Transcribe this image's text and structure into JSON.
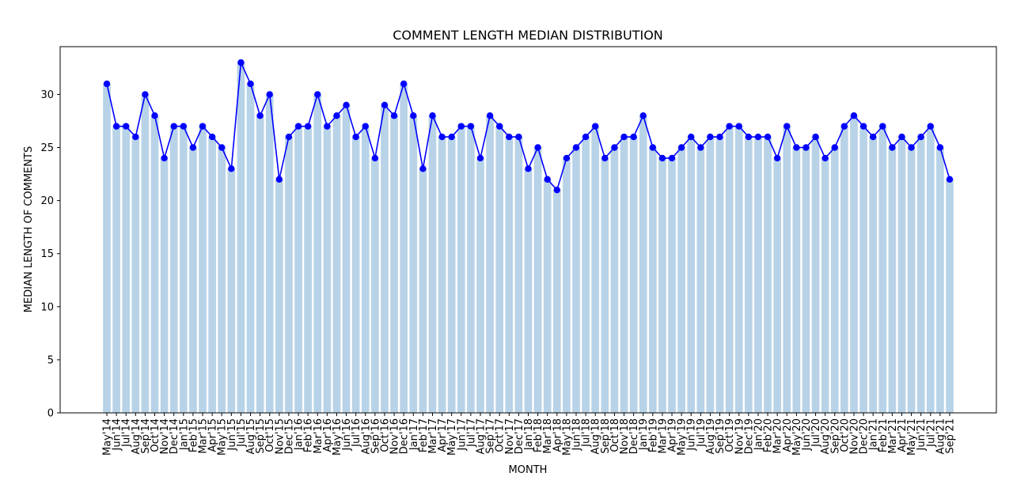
{
  "chart_data": {
    "type": "bar",
    "title": "COMMENT LENGTH MEDIAN DISTRIBUTION",
    "xlabel": "MONTH",
    "ylabel": "MEDIAN LENGTH OF COMMENTS",
    "ylim": [
      0,
      34.5
    ],
    "yticks": [
      0,
      5,
      10,
      15,
      20,
      25,
      30
    ],
    "grid": false,
    "bar_color": "#b8d3e8",
    "line_color": "#0000ff",
    "categories": [
      "May'14",
      "Jun'14",
      "Jul'14",
      "Aug'14",
      "Sep'14",
      "Oct'14",
      "Nov'14",
      "Dec'14",
      "Jan'15",
      "Feb'15",
      "Mar'15",
      "Apr'15",
      "May'15",
      "Jun'15",
      "Jul'15",
      "Aug'15",
      "Sep'15",
      "Oct'15",
      "Nov'15",
      "Dec'15",
      "Jan'16",
      "Feb'16",
      "Mar'16",
      "Apr'16",
      "May'16",
      "Jun'16",
      "Jul'16",
      "Aug'16",
      "Sep'16",
      "Oct'16",
      "Nov'16",
      "Dec'16",
      "Jan'17",
      "Feb'17",
      "Mar'17",
      "Apr'17",
      "May'17",
      "Jun'17",
      "Jul'17",
      "Aug'17",
      "Sep'17",
      "Oct'17",
      "Nov'17",
      "Dec'17",
      "Jan'18",
      "Feb'18",
      "Mar'18",
      "Apr'18",
      "May'18",
      "Jun'18",
      "Jul'18",
      "Aug'18",
      "Sep'18",
      "Oct'18",
      "Nov'18",
      "Dec'18",
      "Jan'19",
      "Feb'19",
      "Mar'19",
      "Apr'19",
      "May'19",
      "Jun'19",
      "Jul'19",
      "Aug'19",
      "Sep'19",
      "Oct'19",
      "Nov'19",
      "Dec'19",
      "Jan'20",
      "Feb'20",
      "Mar'20",
      "Apr'20",
      "May'20",
      "Jun'20",
      "Jul'20",
      "Aug'20",
      "Sep'20",
      "Oct'20",
      "Nov'20",
      "Dec'20",
      "Jan'21",
      "Feb'21",
      "Mar'21",
      "Apr'21",
      "May'21",
      "Jun'21",
      "Jul'21",
      "Aug'21",
      "Sep'21"
    ],
    "values": [
      31,
      27,
      27,
      26,
      30,
      28,
      24,
      27,
      27,
      25,
      27,
      26,
      25,
      23,
      33,
      31,
      28,
      30,
      22,
      26,
      27,
      27,
      30,
      27,
      28,
      29,
      26,
      27,
      24,
      29,
      28,
      31,
      28,
      23,
      28,
      26,
      26,
      27,
      27,
      24,
      28,
      27,
      26,
      26,
      23,
      25,
      22,
      21,
      24,
      25,
      26,
      27,
      24,
      25,
      26,
      26,
      28,
      25,
      24,
      24,
      25,
      26,
      25,
      26,
      26,
      27,
      27,
      26,
      26,
      26,
      24,
      27,
      25,
      25,
      26,
      24,
      25,
      27,
      28,
      27,
      26,
      27,
      25,
      26,
      25,
      26,
      27,
      25,
      22
    ]
  }
}
